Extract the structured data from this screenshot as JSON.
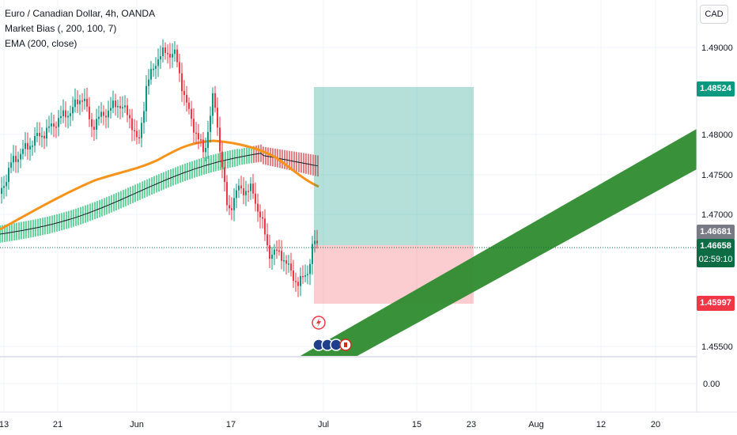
{
  "legend": {
    "symbol": "Euro / Canadian Dollar, 4h, OANDA",
    "indicator1": "Market Bias (, 200, 100, 7)",
    "indicator2": "EMA (200, close)"
  },
  "currency_button": "CAD",
  "price_axis": {
    "ticks": [
      {
        "label": "1.49000",
        "value": 1.49
      },
      {
        "label": "1.48000",
        "value": 1.48
      },
      {
        "label": "1.47500",
        "value": 1.475
      },
      {
        "label": "1.47000",
        "value": 1.47
      },
      {
        "label": "1.45500",
        "value": 1.455
      }
    ],
    "lower_pane_tick": "0.00"
  },
  "price_tags": {
    "take_profit": {
      "label": "1.48524",
      "value": 1.48524,
      "color": "#089981"
    },
    "prev_close": {
      "label": "1.46681",
      "value": 1.46681,
      "color": "#787b86"
    },
    "last_price": {
      "label": "1.46658",
      "value": 1.46658,
      "color": "#0e6c45"
    },
    "countdown": "02:59:10",
    "stop_loss": {
      "label": "1.45997",
      "value": 1.45997,
      "color": "#f23645"
    }
  },
  "time_axis": {
    "ticks": [
      "13",
      "21",
      "Jun",
      "17",
      "Jul",
      "15",
      "23",
      "Aug",
      "12",
      "20"
    ]
  },
  "colors": {
    "up": "#089981",
    "down": "#f23645",
    "ema": "#f7931a",
    "bias_bull": "#4fcf8f",
    "bias_bear": "#e06a70",
    "channel": "#2e8b2e"
  }
}
